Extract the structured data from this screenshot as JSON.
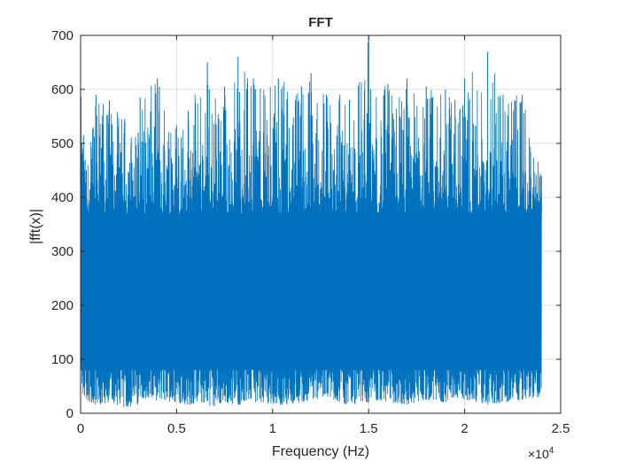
{
  "chart_data": {
    "type": "line",
    "title": "FFT",
    "xlabel": "Frequency (Hz)",
    "ylabel": "|fft(x)|",
    "x_exponent_label": "×10",
    "x_exponent_power": "4",
    "xlim": [
      0,
      25000
    ],
    "ylim": [
      0,
      700
    ],
    "x_range": [
      0,
      24000
    ],
    "xticks": [
      0,
      5000,
      10000,
      15000,
      20000,
      25000
    ],
    "xtick_labels": [
      "0",
      "0.5",
      "1",
      "1.5",
      "2",
      "2.5"
    ],
    "yticks": [
      0,
      100,
      200,
      300,
      400,
      500,
      600,
      700
    ],
    "ytick_labels": [
      "0",
      "100",
      "200",
      "300",
      "400",
      "500",
      "600",
      "700"
    ],
    "grid": true,
    "series": [
      {
        "color": "#0072BD",
        "x": [
          0,
          150,
          300,
          800,
          1500,
          2300,
          3000,
          3100,
          4000,
          4100,
          5600,
          6600,
          6700,
          7500,
          8200,
          9000,
          9100,
          10300,
          11500,
          12000,
          12800,
          13500,
          14000,
          15000,
          15100,
          16000,
          17000,
          18000,
          19000,
          19500,
          19900,
          20000,
          21200,
          22000,
          23000,
          24000
        ],
        "envelope_upper": [
          600,
          515,
          450,
          590,
          580,
          545,
          520,
          585,
          620,
          605,
          560,
          650,
          600,
          605,
          660,
          620,
          600,
          620,
          605,
          630,
          590,
          590,
          580,
          700,
          600,
          610,
          620,
          605,
          600,
          580,
          570,
          620,
          670,
          590,
          590,
          440
        ],
        "envelope_lower": [
          55,
          30,
          25,
          15,
          20,
          10,
          15,
          30,
          20,
          25,
          15,
          20,
          10,
          20,
          15,
          25,
          20,
          15,
          20,
          25,
          30,
          20,
          15,
          20,
          25,
          20,
          15,
          25,
          20,
          30,
          20,
          25,
          15,
          20,
          25,
          30
        ],
        "dense_band": [
          80,
          370
        ]
      }
    ]
  }
}
